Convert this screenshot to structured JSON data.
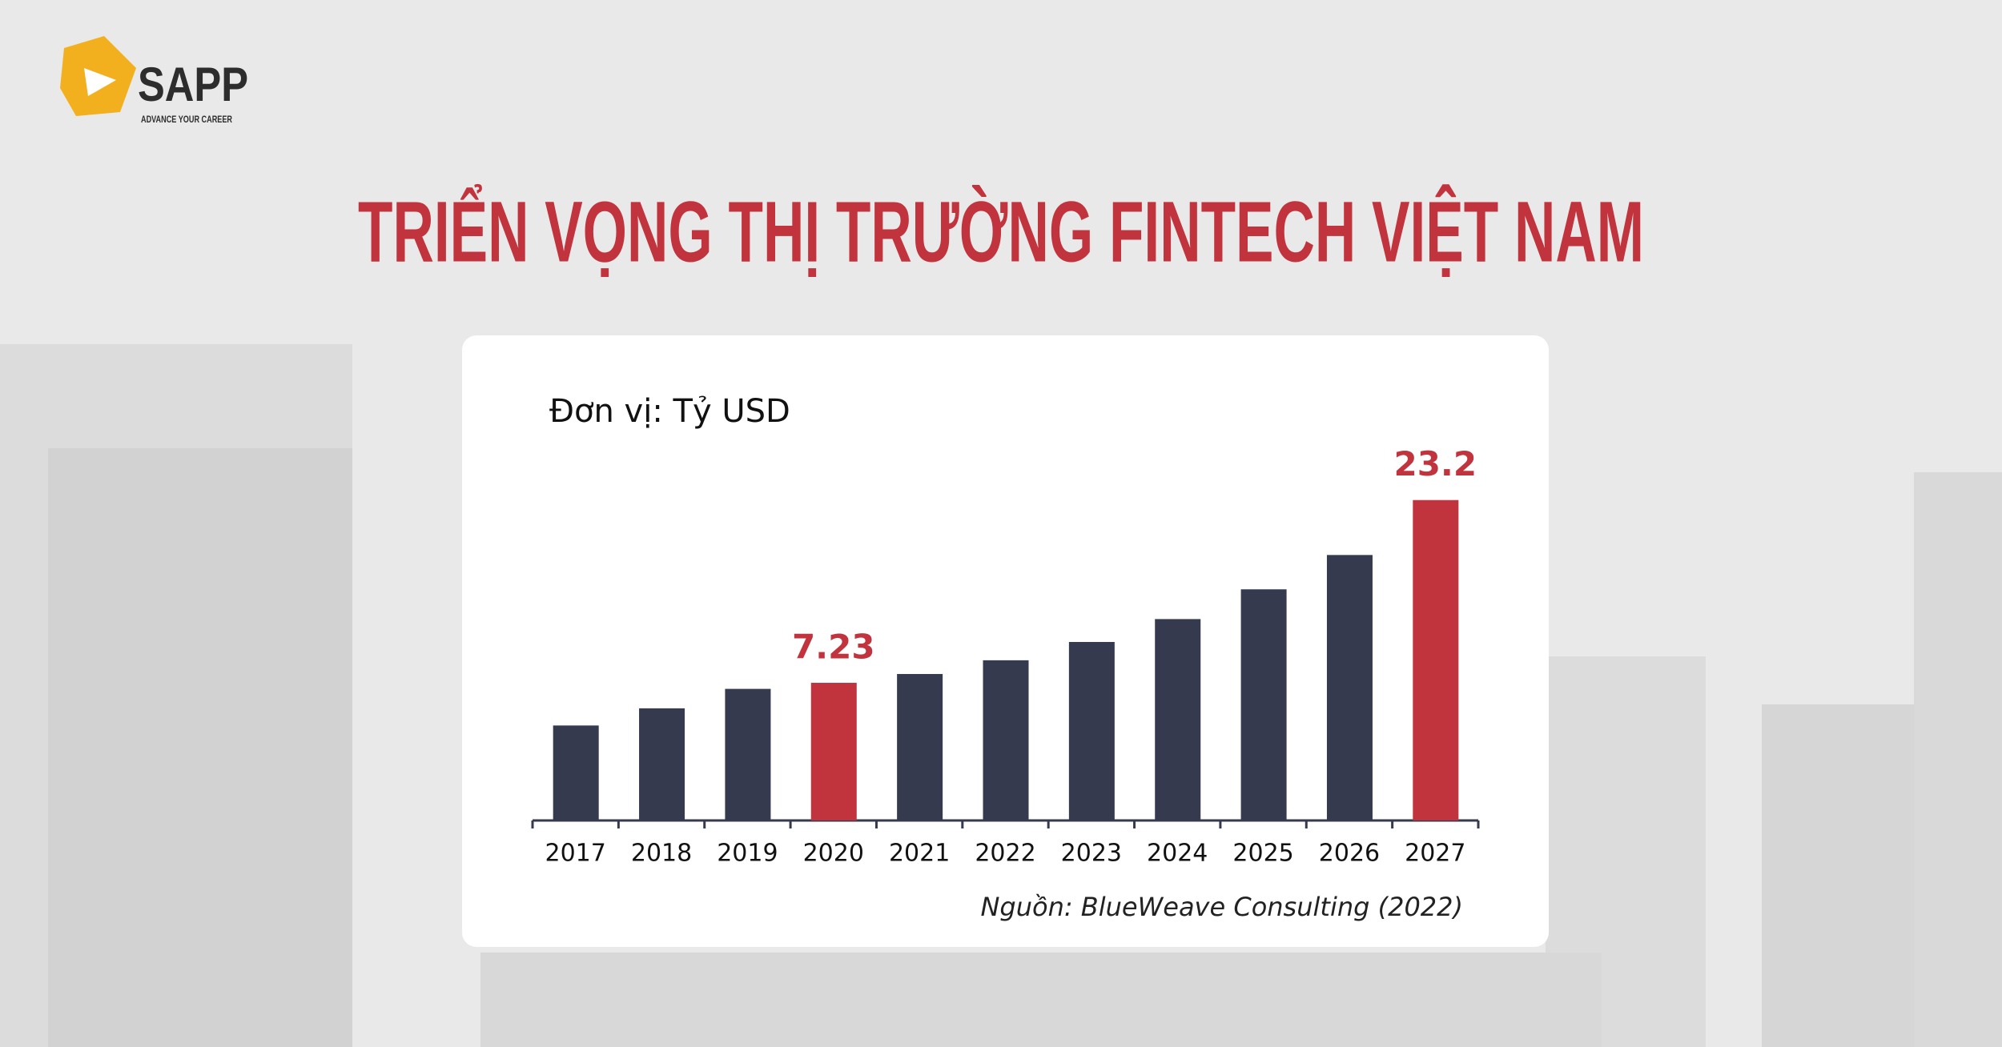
{
  "logo": {
    "name": "SAPP",
    "tagline": "ADVANCE YOUR CAREER"
  },
  "chart_data": {
    "type": "bar",
    "title": "TRIỂN VỌNG THỊ TRƯỜNG FINTECH VIỆT NAM",
    "unit": "Đơn vị: Tỷ USD",
    "source": "Nguồn: BlueWeave Consulting (2022)",
    "categories": [
      "2017",
      "2018",
      "2019",
      "2020",
      "2021",
      "2022",
      "2023",
      "2024",
      "2025",
      "2026",
      "2027"
    ],
    "values": [
      3.5,
      5.0,
      6.7,
      7.23,
      8.0,
      9.2,
      10.8,
      12.8,
      15.4,
      18.4,
      23.2
    ],
    "value_labels": [
      null,
      null,
      null,
      "7.23",
      null,
      null,
      null,
      null,
      null,
      null,
      "23.2"
    ],
    "colors": [
      "#363a4f",
      "#363a4f",
      "#363a4f",
      "#c1333d",
      "#363a4f",
      "#363a4f",
      "#363a4f",
      "#363a4f",
      "#363a4f",
      "#363a4f",
      "#c1333d"
    ],
    "ylim": [
      -4.8,
      25
    ]
  }
}
